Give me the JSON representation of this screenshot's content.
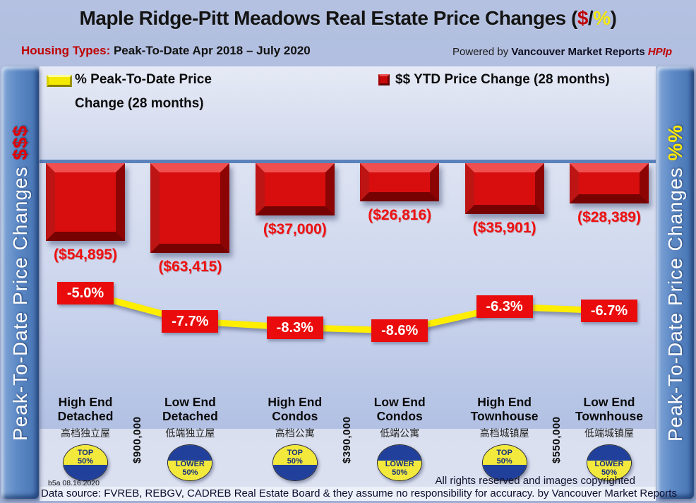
{
  "header": {
    "title_main": "Maple Ridge-Pitt Meadows Real Estate Price Changes (",
    "title_dollar": "$",
    "title_slash": "/",
    "title_pct": "%",
    "title_close": ")",
    "subtitle_label": "Housing Types:",
    "subtitle_text": " Peak-To-Date Apr 2018 – July 2020",
    "powered_prefix": "Powered by ",
    "powered_brand": "Vancouver Market Reports ",
    "powered_suffix": "HPIp"
  },
  "legend": {
    "pct_line1": "% Peak-To-Date Price",
    "pct_line2": "Change (28 months)",
    "usd": "$$ YTD Price Change (28 months)"
  },
  "side_left": {
    "text": "Peak-To-Date Price Changes ",
    "accent": "$$$"
  },
  "side_right": {
    "text": "Peak-To-Date Price Changes ",
    "accent": "%%"
  },
  "chart_data": {
    "type": "bar+line",
    "title": "Maple Ridge-Pitt Meadows Real Estate Price Changes ($/%)",
    "period": "Peak-To-Date Apr 2018 – July 2020",
    "legend_position": "top",
    "categories": [
      {
        "line1": "High End",
        "line2": "Detached",
        "cn": "高档独立屋",
        "badge": "TOP",
        "badge_pct": "50%",
        "badge_type": "top"
      },
      {
        "line1": "Low End",
        "line2": "Detached",
        "cn": "低端独立屋",
        "badge": "LOWER",
        "badge_pct": "50%",
        "badge_type": "lower"
      },
      {
        "line1": "High End",
        "line2": "Condos",
        "cn": "高档公寓",
        "badge": "TOP",
        "badge_pct": "50%",
        "badge_type": "top"
      },
      {
        "line1": "Low End",
        "line2": "Condos",
        "cn": "低端公寓",
        "badge": "LOWER",
        "badge_pct": "50%",
        "badge_type": "lower"
      },
      {
        "line1": "High End",
        "line2": "Townhouse",
        "cn": "高档城镇屋",
        "badge": "TOP",
        "badge_pct": "50%",
        "badge_type": "top"
      },
      {
        "line1": "Low End",
        "line2": "Townhouse",
        "cn": "低端城镇屋",
        "badge": "LOWER",
        "badge_pct": "50%",
        "badge_type": "lower"
      }
    ],
    "series": [
      {
        "name": "$$ YTD Price Change (28 months)",
        "type": "bar",
        "color": "#d80e0e",
        "values": [
          -54895,
          -63415,
          -37000,
          -26816,
          -35901,
          -28389
        ],
        "labels": [
          "($54,895)",
          "($63,415)",
          "($37,000)",
          "($26,816)",
          "($35,901)",
          "($28,389)"
        ]
      },
      {
        "name": "% Peak-To-Date Price Change (28 months)",
        "type": "line",
        "color": "#ffee00",
        "values": [
          -5.0,
          -7.7,
          -8.3,
          -8.6,
          -6.3,
          -6.7
        ],
        "labels": [
          "-5.0%",
          "-7.7%",
          "-8.3%",
          "-8.6%",
          "-6.3%",
          "-6.7%"
        ]
      }
    ],
    "price_thresholds": [
      {
        "label": "$900,000",
        "between": [
          0,
          1
        ]
      },
      {
        "label": "$390,000",
        "between": [
          2,
          3
        ]
      },
      {
        "label": "$550,000",
        "between": [
          4,
          5
        ]
      }
    ],
    "baseline": 0
  },
  "footer": {
    "version": "b5a 08.16.2020",
    "rights": "All rights reserved and  images copyrighted",
    "source": "Data source: FVREB, REBGV, CADREB Real Estate Board & they assume no responsibility for accuracy. by Vancouver Market Reports"
  }
}
